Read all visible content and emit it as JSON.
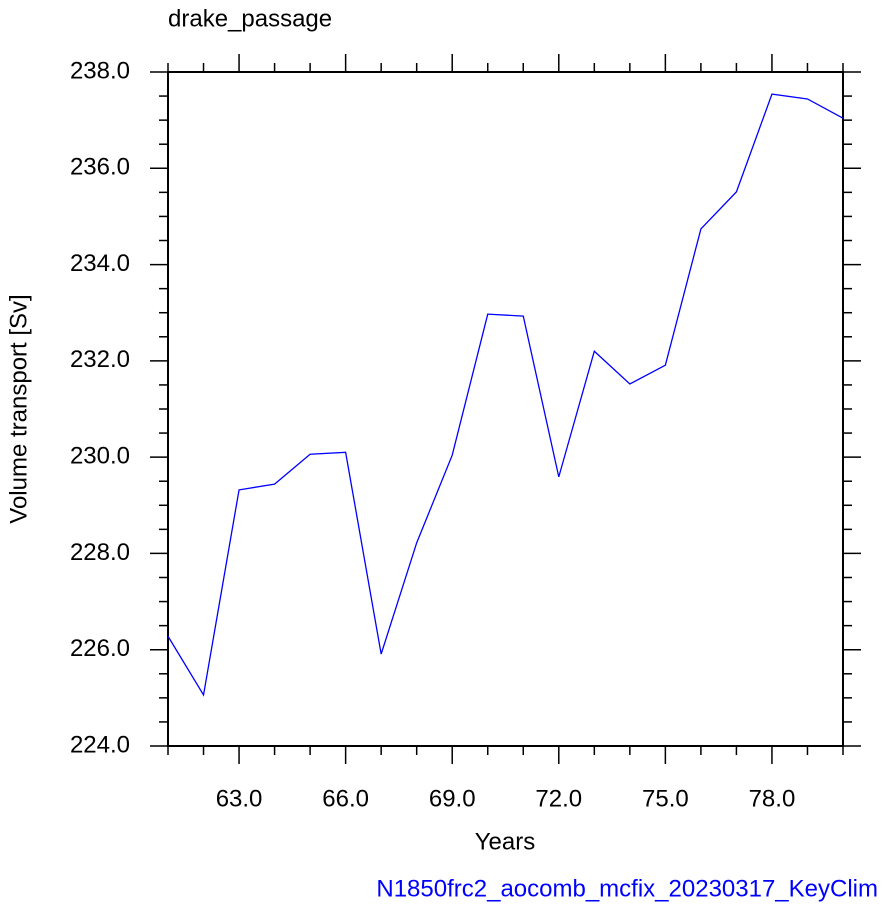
{
  "chart_data": {
    "type": "line",
    "title": "drake_passage",
    "subtitle": "N1850frc2_aocomb_mcfix_20230317_KeyClim",
    "x_label": "Years",
    "y_label": "Volume transport [Sv]",
    "x": [
      61,
      62,
      63,
      64,
      65,
      66,
      67,
      68,
      69,
      70,
      71,
      72,
      73,
      74,
      75,
      76,
      77,
      78,
      79,
      80
    ],
    "series": [
      {
        "name": "drake_passage",
        "color": "#0000ff",
        "values": [
          226.28,
          225.06,
          229.32,
          229.44,
          230.06,
          230.1,
          225.91,
          228.22,
          230.04,
          232.97,
          232.93,
          229.59,
          232.2,
          231.52,
          231.91,
          234.74,
          235.51,
          237.54,
          237.44,
          237.04
        ]
      }
    ],
    "xlim": [
      61,
      80
    ],
    "ylim": [
      224,
      238
    ],
    "xticks": [
      {
        "value": 63,
        "label": "63.0"
      },
      {
        "value": 66,
        "label": "66.0"
      },
      {
        "value": 69,
        "label": "69.0"
      },
      {
        "value": 72,
        "label": "72.0"
      },
      {
        "value": 75,
        "label": "75.0"
      },
      {
        "value": 78,
        "label": "78.0"
      }
    ],
    "yticks": [
      {
        "value": 224,
        "label": "224.0"
      },
      {
        "value": 226,
        "label": "226.0"
      },
      {
        "value": 228,
        "label": "228.0"
      },
      {
        "value": 230,
        "label": "230.0"
      },
      {
        "value": 232,
        "label": "232.0"
      },
      {
        "value": 234,
        "label": "234.0"
      },
      {
        "value": 236,
        "label": "236.0"
      },
      {
        "value": 238,
        "label": "238.0"
      }
    ],
    "xminorticks": [
      61,
      62,
      64,
      65,
      67,
      68,
      70,
      71,
      73,
      74,
      76,
      77,
      79,
      80
    ],
    "yminorticks": [
      224.5,
      225,
      225.5,
      226.5,
      227,
      227.5,
      228.5,
      229,
      229.5,
      230.5,
      231,
      231.5,
      232.5,
      233,
      233.5,
      234.5,
      235,
      235.5,
      236.5,
      237,
      237.5
    ],
    "grid": false
  }
}
